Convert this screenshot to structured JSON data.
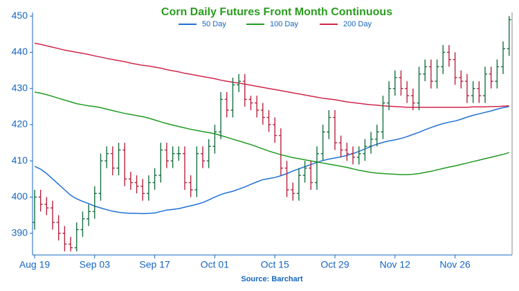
{
  "chart_data": {
    "type": "ohlc",
    "title": "Corn Daily Futures Front Month Continuous",
    "source": "Source: Barchart",
    "categories": [
      "Aug 19",
      null,
      null,
      null,
      null,
      null,
      null,
      null,
      null,
      null,
      "Sep 03",
      null,
      null,
      null,
      null,
      null,
      null,
      null,
      null,
      null,
      "Sep 17",
      null,
      null,
      null,
      null,
      null,
      null,
      null,
      null,
      null,
      "Oct 01",
      null,
      null,
      null,
      null,
      null,
      null,
      null,
      null,
      null,
      "Oct 15",
      null,
      null,
      null,
      null,
      null,
      null,
      null,
      null,
      null,
      "Oct 29",
      null,
      null,
      null,
      null,
      null,
      null,
      null,
      null,
      null,
      "Nov 12",
      null,
      null,
      null,
      null,
      null,
      null,
      null,
      null,
      null,
      "Nov 26",
      null,
      null,
      null,
      null,
      null,
      null,
      null,
      null,
      null
    ],
    "open": [
      393,
      400,
      398,
      397,
      393,
      390,
      387,
      386,
      391,
      394,
      396,
      401,
      410,
      412,
      408,
      413,
      405,
      404,
      403,
      401,
      404,
      406,
      413,
      410,
      412,
      412,
      404,
      402,
      412,
      410,
      414,
      418,
      427,
      424,
      431,
      432,
      427,
      426,
      424,
      422,
      420,
      417,
      408,
      402,
      401,
      406,
      408,
      404,
      412,
      418,
      422,
      415,
      413,
      412,
      411,
      412,
      414,
      416,
      418,
      426,
      430,
      433,
      430,
      428,
      426,
      434,
      436,
      432,
      436,
      440,
      438,
      433,
      432,
      428,
      430,
      428,
      434,
      432,
      436,
      441
    ],
    "high": [
      402,
      402,
      400,
      399,
      395,
      392,
      389,
      393,
      396,
      398,
      403,
      412,
      414,
      414,
      415,
      415,
      407,
      406,
      405,
      406,
      408,
      415,
      415,
      414,
      414,
      414,
      406,
      414,
      414,
      416,
      420,
      429,
      429,
      433,
      434,
      434,
      428,
      428,
      426,
      424,
      422,
      419,
      410,
      404,
      408,
      410,
      410,
      414,
      420,
      424,
      424,
      417,
      415,
      414,
      414,
      416,
      418,
      420,
      428,
      432,
      435,
      435,
      432,
      430,
      436,
      438,
      438,
      438,
      442,
      442,
      440,
      435,
      434,
      432,
      432,
      436,
      436,
      438,
      443,
      450
    ],
    "low": [
      391,
      396,
      395,
      391,
      388,
      385,
      385,
      385,
      389,
      392,
      394,
      399,
      408,
      406,
      406,
      403,
      402,
      401,
      399,
      399,
      402,
      404,
      408,
      408,
      410,
      402,
      400,
      400,
      408,
      408,
      412,
      416,
      422,
      422,
      429,
      425,
      424,
      422,
      420,
      418,
      415,
      406,
      400,
      399,
      399,
      404,
      402,
      402,
      410,
      416,
      413,
      411,
      410,
      409,
      409,
      410,
      412,
      414,
      416,
      424,
      428,
      428,
      426,
      424,
      424,
      432,
      430,
      430,
      434,
      436,
      431,
      430,
      426,
      426,
      426,
      426,
      430,
      430,
      434,
      439
    ],
    "close": [
      400,
      398,
      397,
      393,
      390,
      387,
      386,
      391,
      394,
      396,
      401,
      410,
      412,
      408,
      413,
      405,
      404,
      403,
      401,
      404,
      406,
      413,
      410,
      412,
      412,
      404,
      402,
      412,
      410,
      414,
      418,
      427,
      424,
      431,
      432,
      427,
      426,
      424,
      422,
      420,
      417,
      408,
      402,
      401,
      406,
      408,
      404,
      412,
      418,
      422,
      415,
      413,
      412,
      411,
      412,
      414,
      416,
      418,
      426,
      430,
      433,
      430,
      428,
      426,
      434,
      436,
      432,
      436,
      440,
      438,
      433,
      432,
      428,
      430,
      428,
      434,
      432,
      436,
      441,
      449
    ],
    "up_color": "#14703f",
    "down_color": "#b8213d",
    "series": [
      {
        "name": "50 Day",
        "color": "#1f6fd6",
        "values": [
          408.5,
          407.7,
          406.5,
          405,
          403.5,
          402,
          400.5,
          399.5,
          398.8,
          398.2,
          397.5,
          397,
          396.5,
          396.1,
          395.8,
          395.6,
          395.5,
          395.5,
          395.4,
          395.5,
          395.6,
          396,
          396.4,
          396.6,
          396.8,
          397.2,
          397.6,
          398,
          398.5,
          399.2,
          400,
          400.7,
          401.2,
          401.6,
          402.2,
          402.8,
          403.5,
          404.2,
          404.8,
          405.1,
          405.4,
          405.9,
          406.5,
          407.2,
          407.8,
          408.4,
          409,
          409.6,
          410.1,
          410.5,
          410.8,
          411.1,
          411.5,
          412,
          412.6,
          413.3,
          414,
          414.6,
          415.1,
          415.5,
          415.8,
          416.2,
          416.7,
          417.3,
          417.9,
          418.6,
          419.2,
          419.8,
          420.3,
          420.7,
          421,
          421.5,
          422.1,
          422.6,
          423,
          423.4,
          423.8,
          424.3,
          424.7,
          425
        ]
      },
      {
        "name": "100 Day",
        "color": "#1f9a1f",
        "values": [
          429,
          428.7,
          428.3,
          427.8,
          427.3,
          426.8,
          426.3,
          425.8,
          425.5,
          425.2,
          425,
          424.7,
          424.3,
          423.9,
          423.5,
          423.1,
          422.8,
          422.5,
          422.2,
          421.8,
          421.3,
          420.8,
          420.3,
          419.9,
          419.5,
          419.1,
          418.7,
          418.4,
          418.1,
          417.8,
          417.5,
          417,
          416.5,
          416,
          415.5,
          415,
          414.5,
          413.9,
          413.3,
          412.7,
          412.2,
          411.7,
          411.3,
          410.9,
          410.6,
          410.3,
          410,
          409.7,
          409.4,
          409.1,
          408.8,
          408.5,
          408.2,
          407.8,
          407.4,
          407.1,
          406.8,
          406.6,
          406.5,
          406.4,
          406.3,
          406.2,
          406.2,
          406.3,
          406.5,
          406.8,
          407.1,
          407.5,
          407.9,
          408.3,
          408.6,
          409,
          409.4,
          409.8,
          410.2,
          410.6,
          411,
          411.4,
          411.8,
          412.3
        ]
      },
      {
        "name": "200 Day",
        "color": "#d0254a",
        "values": [
          442.5,
          442.2,
          441.8,
          441.4,
          441,
          440.6,
          440.3,
          440,
          439.7,
          439.4,
          439,
          438.7,
          438.3,
          438,
          437.7,
          437.4,
          437,
          436.7,
          436.4,
          436.2,
          435.9,
          435.6,
          435.2,
          434.9,
          434.6,
          434.2,
          433.9,
          433.6,
          433.3,
          433,
          432.7,
          432.3,
          432,
          431.7,
          431.5,
          431.2,
          430.9,
          430.6,
          430.3,
          430,
          429.7,
          429.4,
          429.1,
          428.8,
          428.5,
          428.2,
          427.9,
          427.6,
          427.3,
          427.1,
          426.9,
          426.6,
          426.3,
          426.1,
          425.9,
          425.7,
          425.5,
          425.4,
          425.2,
          425.1,
          425,
          424.9,
          424.8,
          424.8,
          424.8,
          424.8,
          424.8,
          424.8,
          424.8,
          424.8,
          424.8,
          424.8,
          424.8,
          424.9,
          424.9,
          424.9,
          425,
          425,
          425.1,
          425.2
        ]
      }
    ],
    "ylim": [
      384,
      451
    ],
    "yticks": [
      390,
      400,
      410,
      420,
      430,
      440,
      450
    ]
  }
}
